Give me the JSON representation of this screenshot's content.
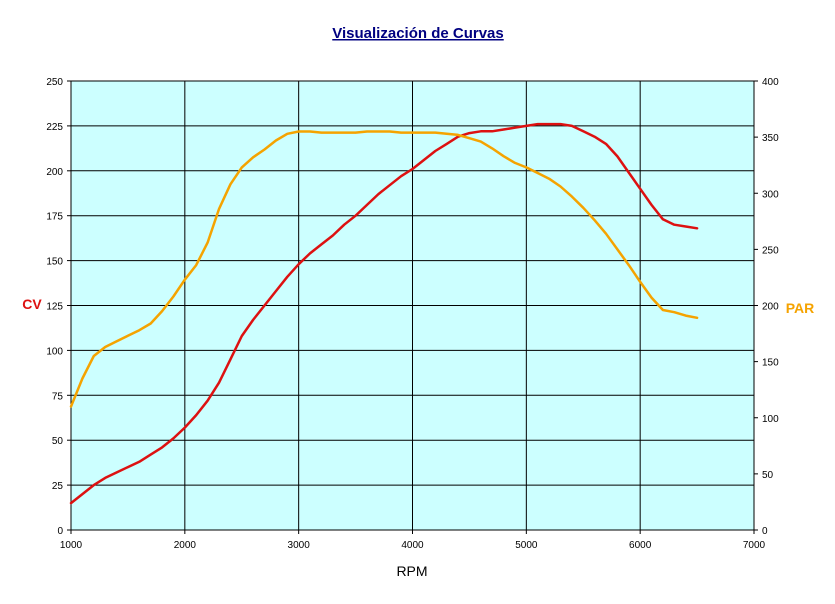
{
  "chart_data": {
    "type": "line",
    "title": "Visualización de Curvas",
    "xlabel": "RPM",
    "ylabel": "CV",
    "y2label": "PAR",
    "xlim": [
      1000,
      7000
    ],
    "ylim": [
      0,
      250
    ],
    "y2lim": [
      0,
      400
    ],
    "x_ticks": [
      1000,
      2000,
      3000,
      4000,
      5000,
      6000,
      7000
    ],
    "y_ticks": [
      0,
      25,
      50,
      75,
      100,
      125,
      150,
      175,
      200,
      225,
      250
    ],
    "y2_ticks": [
      0,
      50,
      100,
      150,
      200,
      250,
      300,
      350,
      400
    ],
    "grid": true,
    "plot_background": "#ccffff",
    "series": [
      {
        "name": "CV",
        "axis": "left",
        "color": "#dd1111",
        "x": [
          1000,
          1100,
          1200,
          1300,
          1400,
          1500,
          1600,
          1700,
          1800,
          1900,
          2000,
          2100,
          2200,
          2300,
          2400,
          2500,
          2600,
          2700,
          2800,
          2900,
          3000,
          3100,
          3200,
          3300,
          3400,
          3500,
          3600,
          3700,
          3800,
          3900,
          4000,
          4100,
          4200,
          4300,
          4400,
          4500,
          4600,
          4700,
          4800,
          4900,
          5000,
          5100,
          5200,
          5300,
          5400,
          5500,
          5600,
          5700,
          5800,
          5900,
          6000,
          6100,
          6200,
          6300,
          6400,
          6500
        ],
        "values": [
          15,
          20,
          25,
          29,
          32,
          35,
          38,
          42,
          46,
          51,
          57,
          64,
          72,
          82,
          95,
          108,
          117,
          125,
          133,
          141,
          148,
          154,
          159,
          164,
          170,
          175,
          181,
          187,
          192,
          197,
          201,
          206,
          211,
          215,
          219,
          221,
          222,
          222,
          223,
          224,
          225,
          226,
          226,
          226,
          225,
          222,
          219,
          215,
          208,
          199,
          190,
          181,
          173,
          170,
          169,
          168
        ]
      },
      {
        "name": "PAR",
        "axis": "right",
        "color": "#f5a300",
        "x": [
          1000,
          1100,
          1200,
          1300,
          1400,
          1500,
          1600,
          1700,
          1800,
          1900,
          2000,
          2100,
          2200,
          2300,
          2400,
          2500,
          2600,
          2700,
          2800,
          2900,
          3000,
          3100,
          3200,
          3300,
          3400,
          3500,
          3600,
          3700,
          3800,
          3900,
          4000,
          4100,
          4200,
          4300,
          4400,
          4500,
          4600,
          4700,
          4800,
          4900,
          5000,
          5100,
          5200,
          5300,
          5400,
          5500,
          5600,
          5700,
          5800,
          5900,
          6000,
          6100,
          6200,
          6300,
          6400,
          6500
        ],
        "values": [
          110,
          135,
          155,
          163,
          168,
          173,
          178,
          184,
          195,
          208,
          223,
          236,
          256,
          286,
          308,
          323,
          332,
          339,
          347,
          353,
          355,
          355,
          354,
          354,
          354,
          354,
          355,
          355,
          355,
          354,
          354,
          354,
          354,
          353,
          352,
          349,
          346,
          340,
          333,
          327,
          323,
          318,
          313,
          306,
          297,
          287,
          276,
          264,
          250,
          236,
          221,
          207,
          196,
          194,
          191,
          189
        ]
      }
    ]
  }
}
